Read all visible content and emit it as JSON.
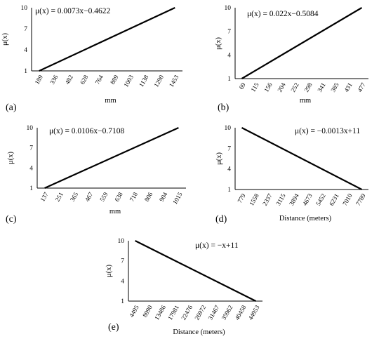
{
  "chart_data": [
    {
      "type": "line",
      "panel_label": "(a)",
      "equation": "μ(x) = 0.0073x−0.4622",
      "xlabel": "mm",
      "ylabel": "μ(x)",
      "ylim": [
        1,
        10
      ],
      "yticks": [
        "1",
        "4",
        "7",
        "10"
      ],
      "categories": [
        "189",
        "336",
        "482",
        "628",
        "764",
        "889",
        "1003",
        "1138",
        "1290",
        "1453"
      ],
      "series": [
        {
          "x": [
            189,
            1453
          ],
          "values": [
            1,
            10
          ]
        }
      ]
    },
    {
      "type": "line",
      "panel_label": "(b)",
      "equation": "μ(x) = 0.022x−0.5084",
      "xlabel": "mm",
      "ylabel": "μ(x)",
      "ylim": [
        1,
        10
      ],
      "yticks": [
        "1",
        "4",
        "7",
        "10"
      ],
      "categories": [
        "69",
        "115",
        "156",
        "204",
        "252",
        "298",
        "341",
        "385",
        "431",
        "477"
      ],
      "series": [
        {
          "x": [
            69,
            477
          ],
          "values": [
            1,
            10
          ]
        }
      ]
    },
    {
      "type": "line",
      "panel_label": "(c)",
      "equation": "μ(x) = 0.0106x−0.7108",
      "xlabel": "mm",
      "ylabel": "μ(x)",
      "ylim": [
        1,
        10
      ],
      "yticks": [
        "1",
        "4",
        "7",
        "10"
      ],
      "categories": [
        "137",
        "251",
        "365",
        "467",
        "559",
        "638",
        "718",
        "806",
        "904",
        "1015"
      ],
      "series": [
        {
          "x": [
            137,
            1015
          ],
          "values": [
            1,
            10
          ]
        }
      ]
    },
    {
      "type": "line",
      "panel_label": "(d)",
      "equation": "μ(x) = −0.0013x+11",
      "xlabel": "Distance (meters)",
      "ylabel": "μ(x)",
      "ylim": [
        1,
        10
      ],
      "yticks": [
        "1",
        "4",
        "7",
        "10"
      ],
      "categories": [
        "779",
        "1558",
        "2337",
        "3115",
        "3894",
        "4673",
        "5452",
        "6231",
        "7010",
        "7789"
      ],
      "series": [
        {
          "x": [
            779,
            7789
          ],
          "values": [
            10,
            1
          ]
        }
      ]
    },
    {
      "type": "line",
      "panel_label": "(e)",
      "equation": "μ(x) = −x+11",
      "xlabel": "Distance (meters)",
      "ylabel": "μ(x)",
      "ylim": [
        1,
        10
      ],
      "yticks": [
        "1",
        "4",
        "7",
        "10"
      ],
      "categories": [
        "4495",
        "8990",
        "13486",
        "17981",
        "22476",
        "26972",
        "31467",
        "35962",
        "40458",
        "44953"
      ],
      "series": [
        {
          "x": [
            4495,
            44953
          ],
          "values": [
            10,
            1
          ]
        }
      ]
    }
  ]
}
